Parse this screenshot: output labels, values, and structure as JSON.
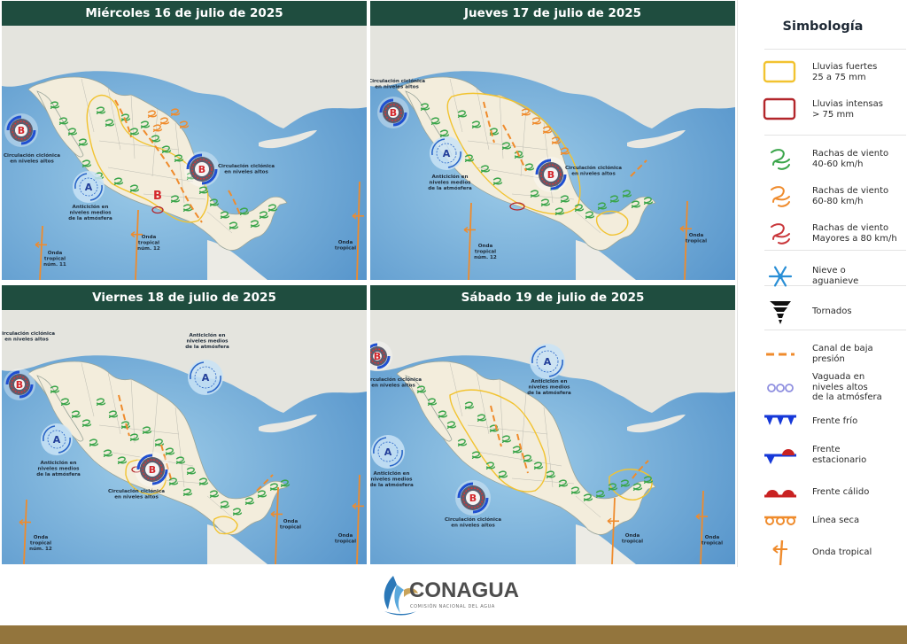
{
  "panels": [
    {
      "date": "Miércoles 16 de julio de 2025",
      "labels": {
        "cc_altos_left": [
          "Circulación ciclónica",
          "en niveles altos"
        ],
        "cc_altos_right": [
          "Circulación ciclónica",
          "en niveles altos"
        ],
        "anticiclon": [
          "Anticiclón en",
          "niveles medios",
          "de la atmósfera"
        ],
        "onda_11": [
          "Onda",
          "tropical",
          "núm. 11"
        ],
        "onda_12": [
          "Onda",
          "tropical",
          "núm. 12"
        ],
        "onda_right": [
          "Onda",
          "tropical"
        ]
      },
      "symbols": {
        "b": "B",
        "a": "A"
      }
    },
    {
      "date": "Jueves 17 de julio de 2025",
      "labels": {
        "cc_altos_left": [
          "Circulación ciclónica",
          "en niveles altos"
        ],
        "cc_altos_right": [
          "Circulación ciclónica",
          "en niveles altos"
        ],
        "anticiclon": [
          "Anticiclón en",
          "niveles medios",
          "de la atmósfera"
        ],
        "onda_12": [
          "Onda",
          "tropical",
          "núm. 12"
        ],
        "onda_right": [
          "Onda",
          "tropical"
        ]
      },
      "symbols": {
        "b": "B",
        "a": "A"
      }
    },
    {
      "date": "Viernes 18 de julio de 2025",
      "labels": {
        "cc_altos_left": [
          "Circulación ciclónica",
          "en niveles altos"
        ],
        "cc_altos_right": [
          "Circulación ciclónica",
          "en niveles altos"
        ],
        "anticiclon_left": [
          "Anticiclón en",
          "niveles medios",
          "de la atmósfera"
        ],
        "anticiclon_top": [
          "Anticiclón en",
          "niveles medios",
          "de la atmósfera"
        ],
        "onda_12": [
          "Onda",
          "tropical",
          "núm. 12"
        ],
        "onda_mid": [
          "Onda",
          "tropical"
        ],
        "onda_right": [
          "Onda",
          "tropical"
        ]
      },
      "symbols": {
        "b": "B",
        "a": "A"
      }
    },
    {
      "date": "Sábado 19 de julio de 2025",
      "labels": {
        "cc_altos_left": [
          "Circulación ciclónica",
          "en niveles altos"
        ],
        "cc_altos_right": [
          "Circulación ciclónica",
          "en niveles altos"
        ],
        "anticiclon_left": [
          "Anticiclón en",
          "niveles medios",
          "de la atmósfera"
        ],
        "anticiclon_top": [
          "Anticiclón en",
          "niveles medios",
          "de la atmósfera"
        ],
        "onda_mid": [
          "Onda",
          "tropical"
        ],
        "onda_right": [
          "Onda",
          "tropical"
        ]
      },
      "symbols": {
        "b": "B",
        "a": "A"
      }
    }
  ],
  "legend": {
    "title": "Simbología",
    "items": [
      {
        "icon": "heavy-rain-outline-icon",
        "color": "#f2c330",
        "lines": [
          "Lluvias fuertes",
          "25 a 75 mm"
        ]
      },
      {
        "icon": "intense-rain-outline-icon",
        "color": "#b3262b",
        "lines": [
          "Lluvias intensas",
          "> 75 mm"
        ]
      },
      {
        "icon": "wind-40-60-icon",
        "color": "#3aa54a",
        "lines": [
          "Rachas de viento",
          "40-60 km/h"
        ]
      },
      {
        "icon": "wind-60-80-icon",
        "color": "#ef8b2c",
        "lines": [
          "Rachas de viento",
          "60-80 km/h"
        ]
      },
      {
        "icon": "wind-80-icon",
        "color": "#c9363a",
        "lines": [
          "Rachas de viento",
          "Mayores a 80 km/h"
        ]
      },
      {
        "icon": "snowflake-icon",
        "color": "#2a8fd6",
        "lines": [
          "Nieve o",
          "aguanieve"
        ]
      },
      {
        "icon": "tornado-icon",
        "color": "#111111",
        "lines": [
          "Tornados"
        ]
      },
      {
        "icon": "low-pressure-channel-icon",
        "color": "#ef8b2c",
        "lines": [
          "Canal de baja",
          "presión"
        ]
      },
      {
        "icon": "upper-trough-icon",
        "color": "#8f8fe0",
        "lines": [
          "Vaguada en",
          "niveles altos",
          "de la atmósfera"
        ]
      },
      {
        "icon": "cold-front-icon",
        "color": "#1638d8",
        "lines": [
          "Frente frío"
        ]
      },
      {
        "icon": "stationary-front-icon",
        "color": "#c92222",
        "lines": [
          "Frente",
          "estacionario"
        ]
      },
      {
        "icon": "warm-front-icon",
        "color": "#c92222",
        "lines": [
          "Frente cálido"
        ]
      },
      {
        "icon": "dry-line-icon",
        "color": "#ef8b2c",
        "lines": [
          "Línea seca"
        ]
      },
      {
        "icon": "tropical-wave-icon",
        "color": "#ef8b2c",
        "lines": [
          "Onda tropical"
        ]
      }
    ]
  },
  "footer": {
    "logo_text": "CONAGUA",
    "logo_subtext": "COMISIÓN NACIONAL DEL AGUA"
  },
  "colors": {
    "header": "#1f4d3f",
    "ocean": "#8cc0e2",
    "ocean_deep": "#5b9bd1",
    "land": "#f0efea",
    "land_usa": "#e4e4de",
    "mexico": "#f3eddc",
    "bar": "#93753d"
  }
}
